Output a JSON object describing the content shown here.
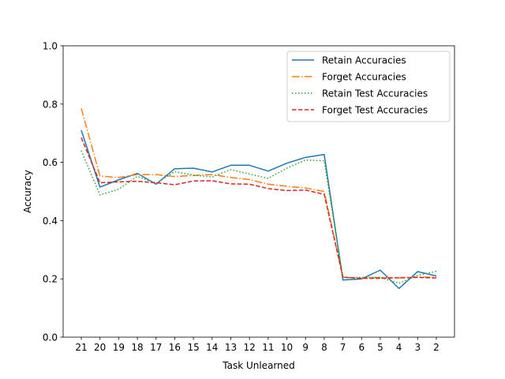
{
  "chart_data": {
    "type": "line",
    "xlabel": "Task Unlearned",
    "ylabel": "Accuracy",
    "categories": [
      "21",
      "20",
      "19",
      "18",
      "17",
      "16",
      "15",
      "14",
      "13",
      "12",
      "11",
      "10",
      "9",
      "8",
      "7",
      "6",
      "5",
      "4",
      "3",
      "2"
    ],
    "ylim": [
      0.0,
      1.0
    ],
    "yticks": [
      "0.0",
      "0.2",
      "0.4",
      "0.6",
      "0.8",
      "1.0"
    ],
    "grid": false,
    "legend_position": "top-right",
    "series": [
      {
        "name": "Retain Accuracies",
        "color": "#1f77b4",
        "dash": "solid",
        "values": [
          0.71,
          0.515,
          0.54,
          0.562,
          0.525,
          0.578,
          0.58,
          0.567,
          0.59,
          0.59,
          0.57,
          0.597,
          0.617,
          0.627,
          0.196,
          0.2,
          0.23,
          0.167,
          0.225,
          0.21
        ]
      },
      {
        "name": "Forget Accuracies",
        "color": "#ff7f0e",
        "dash": "dashdot",
        "values": [
          0.785,
          0.553,
          0.548,
          0.558,
          0.558,
          0.551,
          0.555,
          0.558,
          0.548,
          0.541,
          0.525,
          0.518,
          0.512,
          0.5,
          0.205,
          0.202,
          0.205,
          0.203,
          0.206,
          0.206
        ]
      },
      {
        "name": "Retain Test Accuracies",
        "color": "#2ca02c",
        "dash": "dotted",
        "values": [
          0.64,
          0.488,
          0.508,
          0.552,
          0.528,
          0.568,
          0.556,
          0.55,
          0.575,
          0.56,
          0.545,
          0.58,
          0.608,
          0.605,
          0.205,
          0.205,
          0.205,
          0.185,
          0.212,
          0.226
        ]
      },
      {
        "name": "Forget Test Accuracies",
        "color": "#d62728",
        "dash": "dashed",
        "values": [
          0.685,
          0.53,
          0.533,
          0.535,
          0.53,
          0.523,
          0.536,
          0.537,
          0.526,
          0.525,
          0.51,
          0.503,
          0.505,
          0.49,
          0.206,
          0.202,
          0.202,
          0.204,
          0.205,
          0.203
        ]
      }
    ]
  }
}
